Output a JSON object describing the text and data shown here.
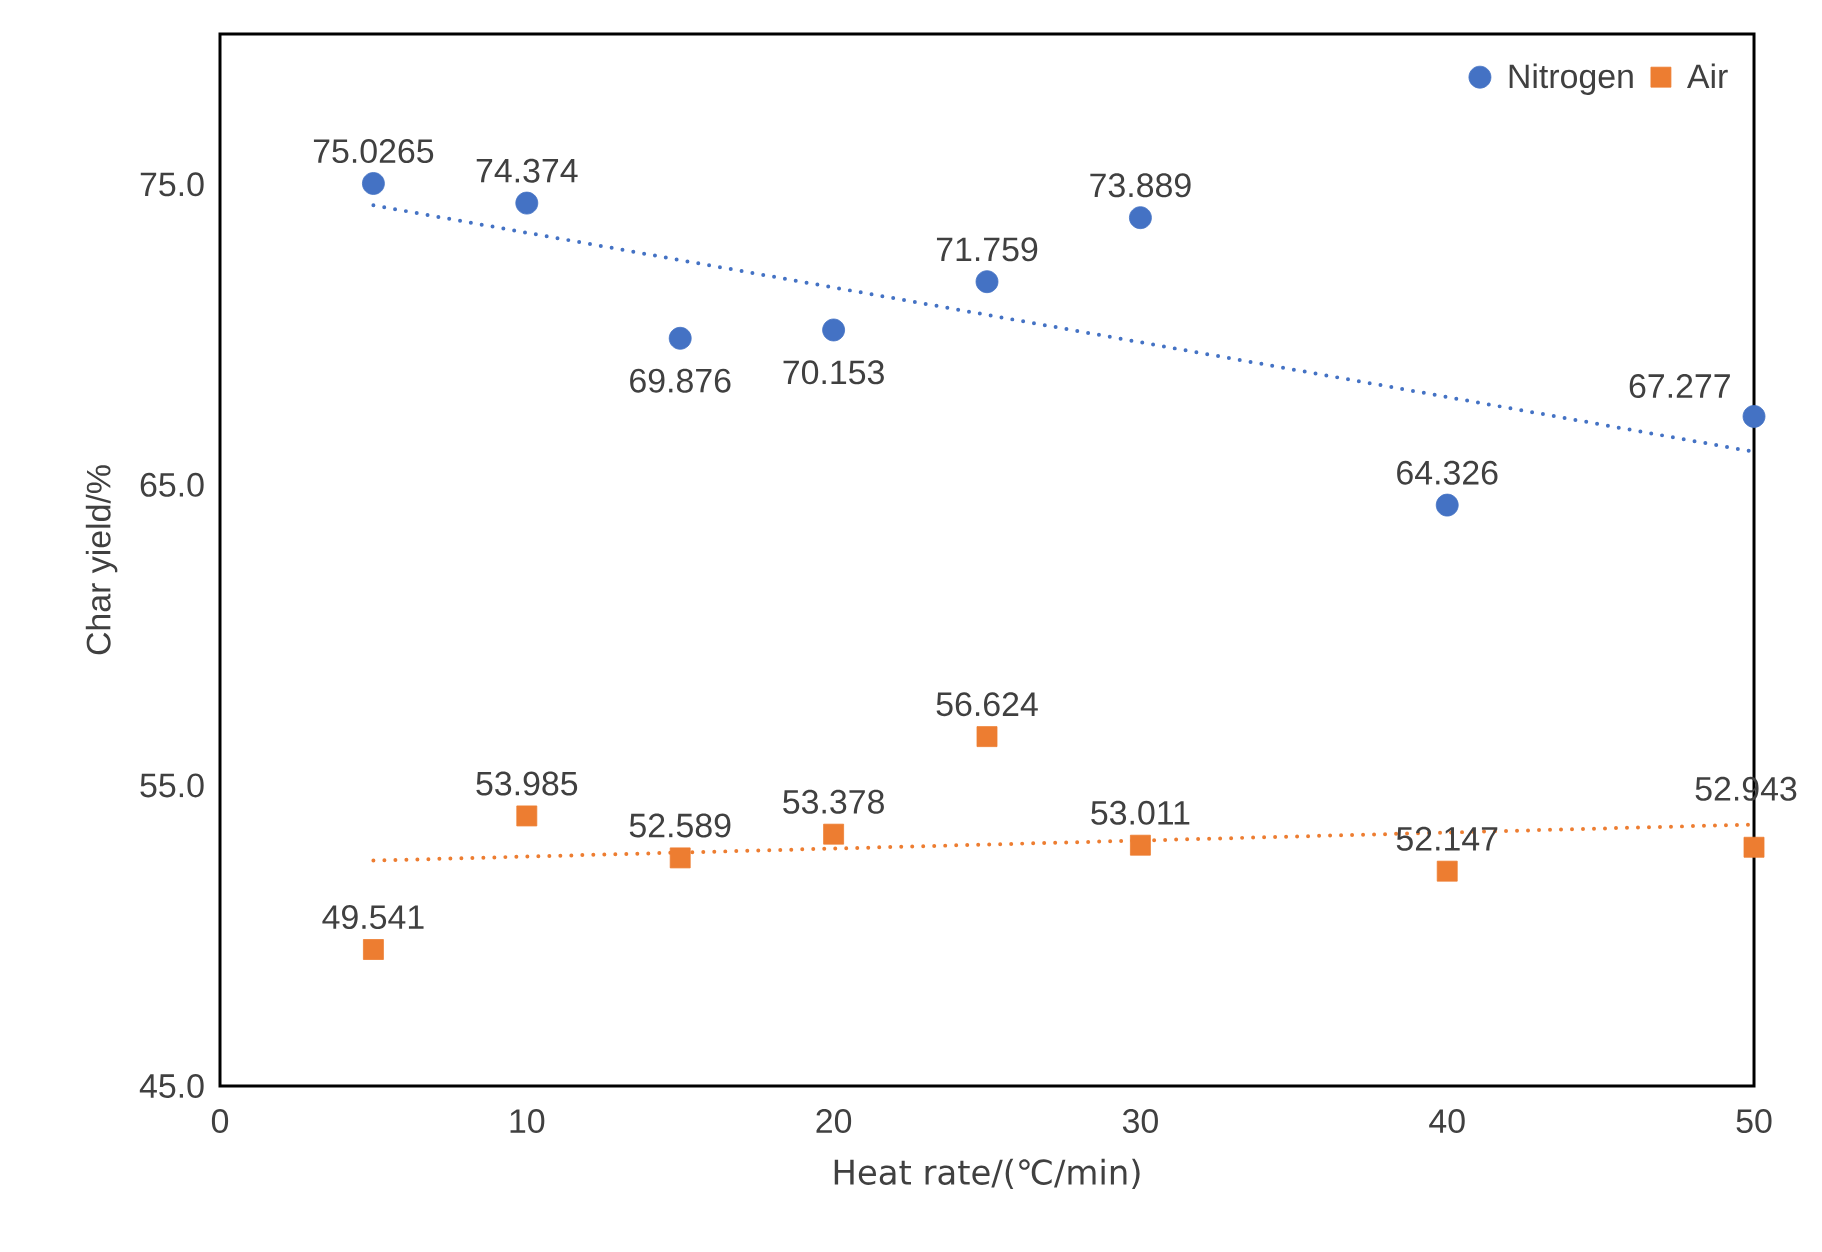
{
  "chart_data": {
    "type": "scatter",
    "xlabel": "Heat rate/(℃/min)",
    "ylabel": "Char yield/%",
    "xlim": [
      0,
      50
    ],
    "xticks": [
      0,
      10,
      20,
      30,
      40,
      50
    ],
    "ylim": [
      45,
      80
    ],
    "yticks": [
      {
        "value": 45,
        "label": "45.0"
      },
      {
        "value": 55,
        "label": "55.0"
      },
      {
        "value": 65,
        "label": "65.0"
      },
      {
        "value": 75,
        "label": "75.0"
      }
    ],
    "grid": false,
    "legend": "top right",
    "series": [
      {
        "name": "Nitrogen",
        "marker": "circle",
        "color": "#4472c4",
        "x": [
          5,
          10,
          15,
          20,
          25,
          30,
          40,
          50
        ],
        "values": [
          75.0265,
          74.374,
          69.876,
          70.153,
          71.759,
          73.889,
          64.326,
          67.277
        ],
        "value_labels": [
          "75.0265",
          "74.374",
          "69.876",
          "70.153",
          "71.759",
          "73.889",
          "64.326",
          "67.277"
        ]
      },
      {
        "name": "Air",
        "marker": "square",
        "color": "#ed7d31",
        "x": [
          5,
          10,
          15,
          20,
          25,
          30,
          40,
          50
        ],
        "values": [
          49.541,
          53.985,
          52.589,
          53.378,
          56.624,
          53.011,
          52.147,
          52.943
        ],
        "value_labels": [
          "49.541",
          "53.985",
          "52.589",
          "53.378",
          "56.624",
          "53.011",
          "52.147",
          "52.943"
        ]
      },
      {
        "type": "line",
        "marker": "none",
        "line_style": "dotted",
        "color": "#4472c4",
        "x": [
          5,
          50
        ],
        "values": [
          74.3,
          66.1
        ]
      },
      {
        "type": "line",
        "marker": "none",
        "line_style": "dotted",
        "color": "#ed7d31",
        "x": [
          5,
          50
        ],
        "values": [
          52.5,
          53.7
        ]
      }
    ]
  }
}
